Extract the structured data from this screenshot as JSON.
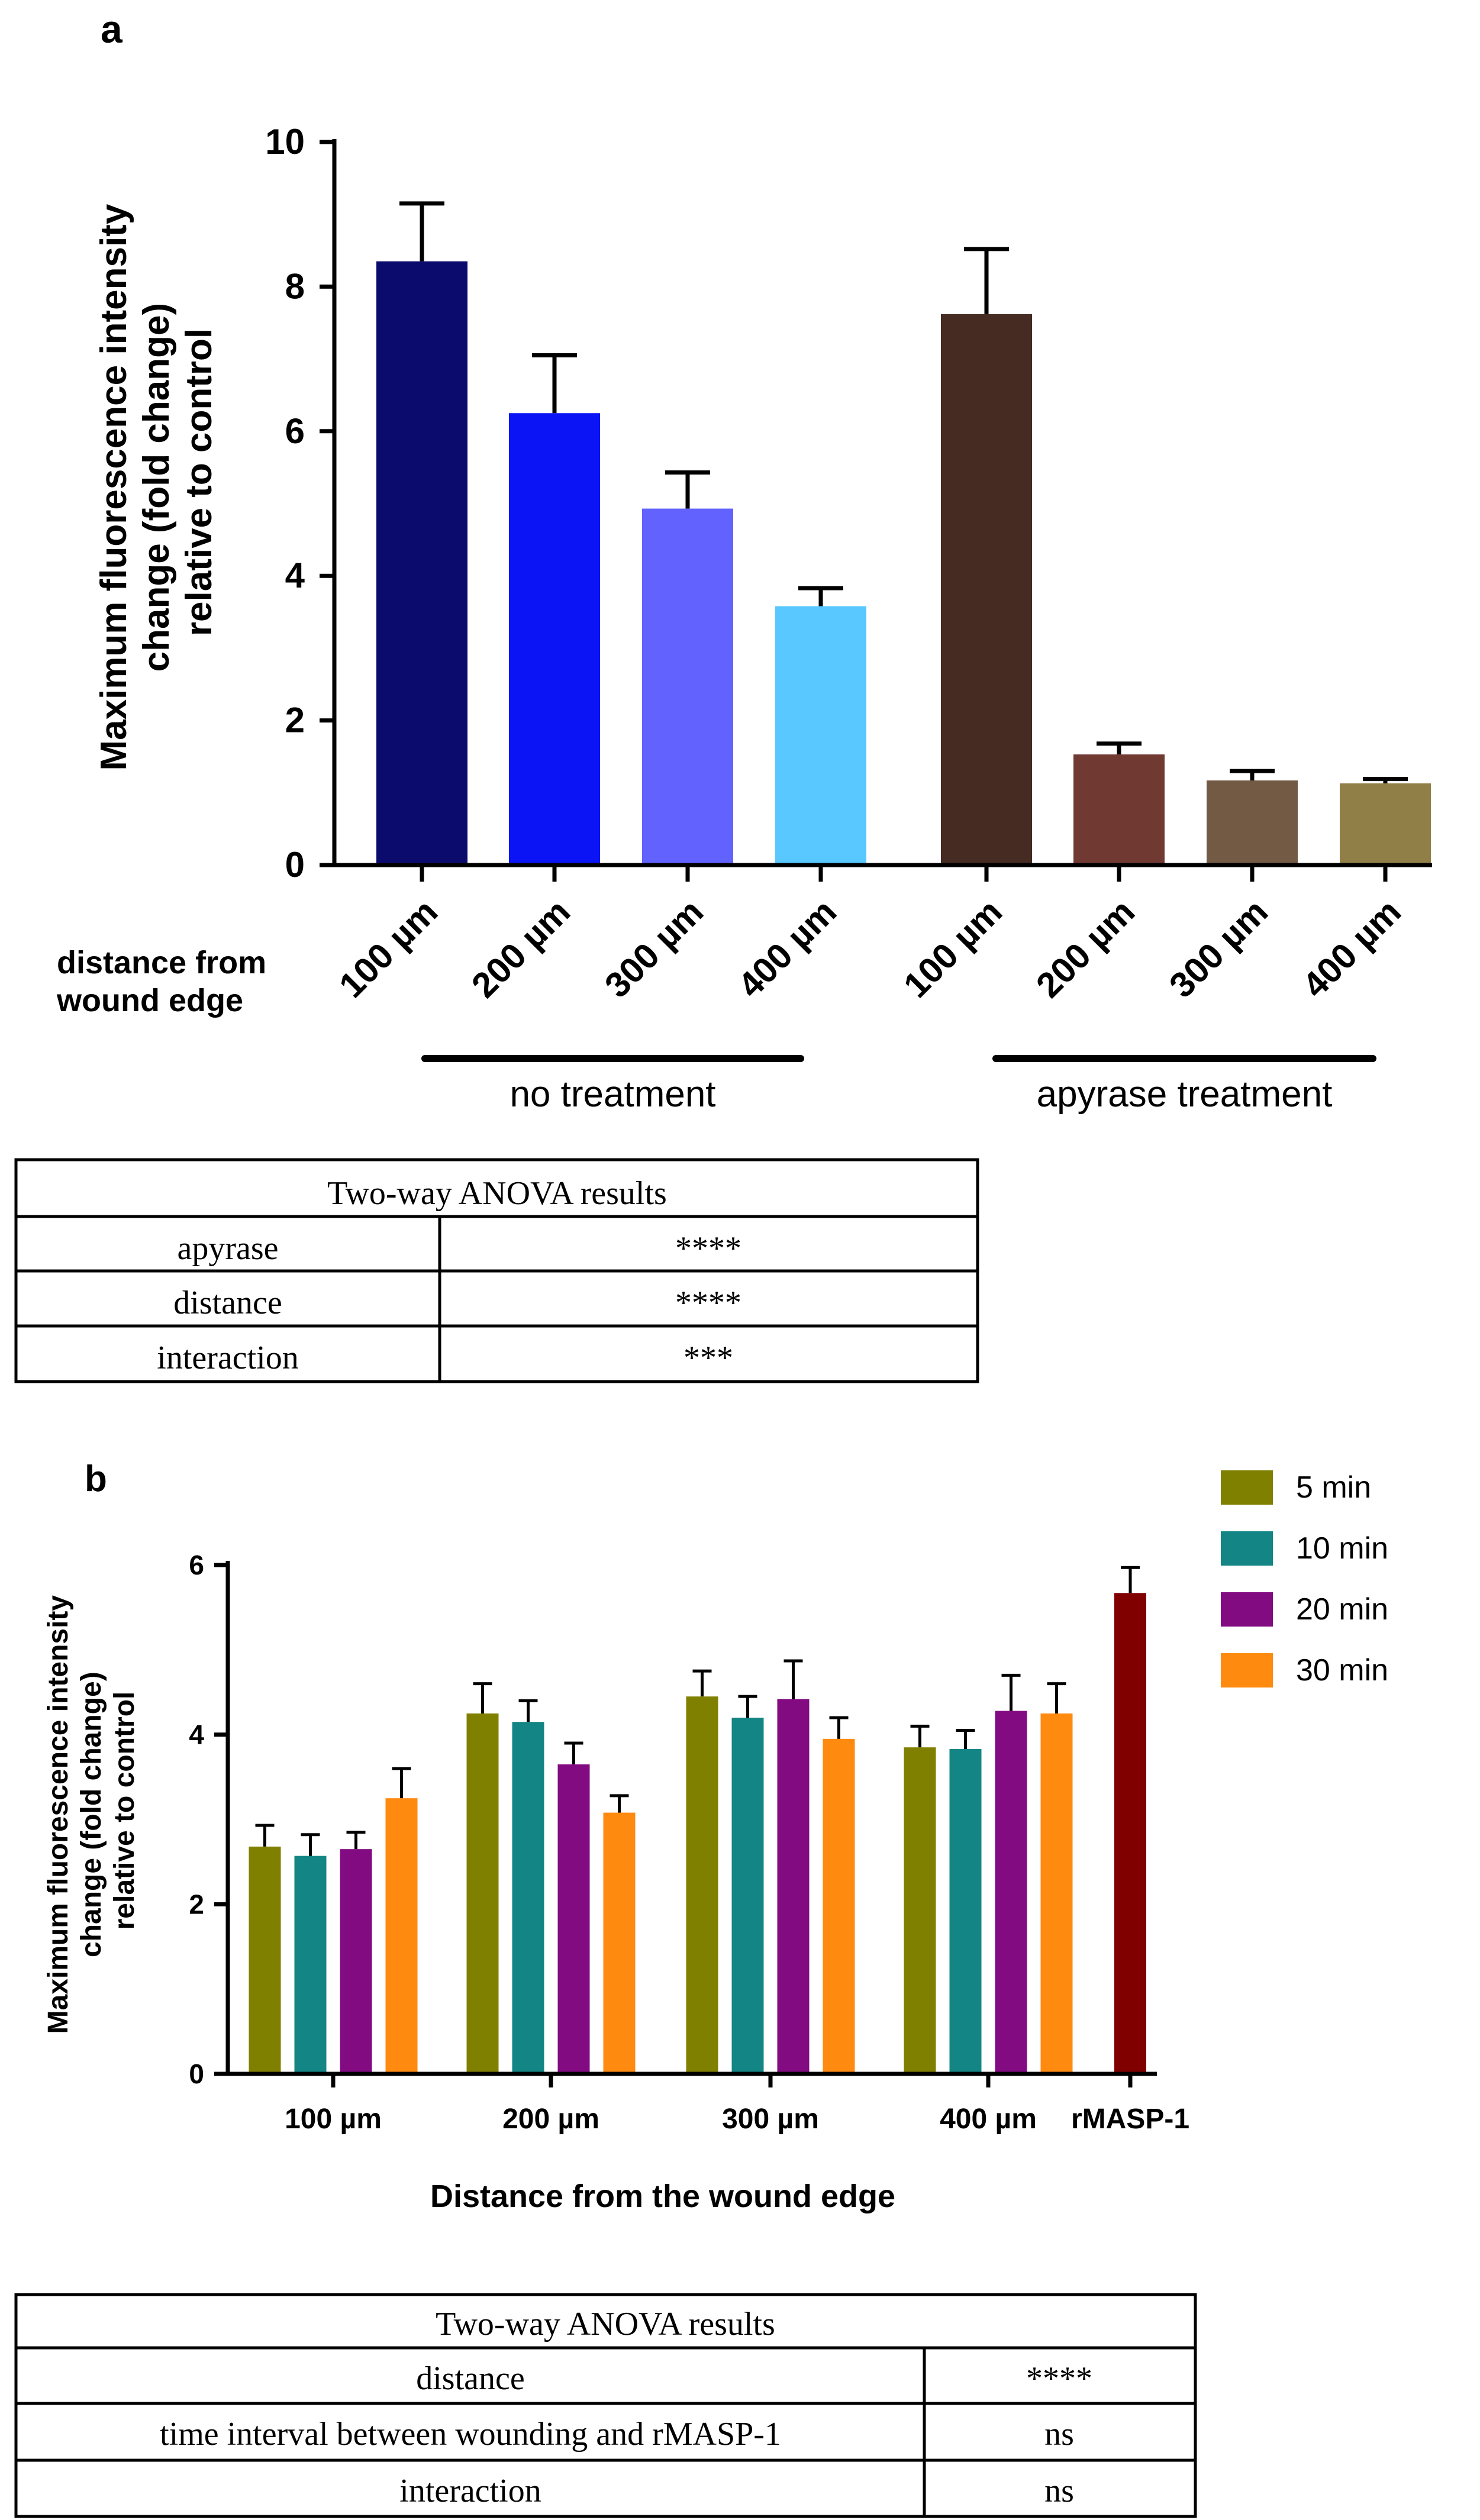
{
  "chart_data": [
    {
      "panel": "a",
      "type": "bar",
      "ylabel_lines": [
        "Maximum fluorescence intensity",
        "change (fold change)",
        "relative to control"
      ],
      "ylim": [
        0,
        10
      ],
      "yticks": [
        "0",
        "2",
        "4",
        "6",
        "8",
        "10"
      ],
      "x_row_label_lines": [
        "distance from",
        "wound edge"
      ],
      "categories": [
        "100 µm",
        "200 µm",
        "300 µm",
        "400 µm",
        "100 µm",
        "200 µm",
        "300 µm",
        "400 µm"
      ],
      "values": [
        8.35,
        6.25,
        4.93,
        3.58,
        7.62,
        1.53,
        1.17,
        1.13
      ],
      "errors": [
        0.8,
        0.8,
        0.5,
        0.25,
        0.9,
        0.15,
        0.13,
        0.06
      ],
      "colors": [
        "#0b0b6e",
        "#0a14f5",
        "#6262ff",
        "#58c8ff",
        "#452b22",
        "#703a33",
        "#725a45",
        "#907f47"
      ],
      "groups": [
        {
          "label": "no treatment",
          "bars": [
            0,
            1,
            2,
            3
          ]
        },
        {
          "label": "apyrase treatment",
          "bars": [
            4,
            5,
            6,
            7
          ]
        }
      ],
      "anova": {
        "title": "Two-way ANOVA results",
        "rows": [
          {
            "factor": "apyrase",
            "result": "****"
          },
          {
            "factor": "distance",
            "result": "****"
          },
          {
            "factor": "interaction",
            "result": "***"
          }
        ]
      }
    },
    {
      "panel": "b",
      "type": "bar",
      "ylabel_lines": [
        "Maximum fluorescence intensity",
        "change (fold change)",
        "relative to control"
      ],
      "xlabel": "Distance from the wound edge",
      "ylim": [
        0,
        6
      ],
      "yticks": [
        "0",
        "2",
        "4",
        "6"
      ],
      "categories": [
        "100 µm",
        "200 µm",
        "300 µm",
        "400 µm"
      ],
      "series": [
        {
          "name": "5 min",
          "color": "#808000",
          "values": [
            2.68,
            4.25,
            4.45,
            3.85
          ],
          "errors": [
            0.25,
            0.35,
            0.3,
            0.25
          ]
        },
        {
          "name": "10 min",
          "color": "#138585",
          "values": [
            2.57,
            4.15,
            4.2,
            3.83
          ],
          "errors": [
            0.25,
            0.25,
            0.25,
            0.22
          ]
        },
        {
          "name": "20 min",
          "color": "#820b82",
          "values": [
            2.65,
            3.65,
            4.42,
            4.28
          ],
          "errors": [
            0.2,
            0.25,
            0.45,
            0.42
          ]
        },
        {
          "name": "30 min",
          "color": "#ff8a10",
          "values": [
            3.25,
            3.08,
            3.95,
            4.25
          ],
          "errors": [
            0.35,
            0.2,
            0.25,
            0.35
          ]
        }
      ],
      "reference": {
        "label": "rMASP-1",
        "value": 5.67,
        "error": 0.3,
        "color": "#800000"
      },
      "anova": {
        "title": "Two-way ANOVA results",
        "rows": [
          {
            "factor": "distance",
            "result": "****"
          },
          {
            "factor": "time interval between wounding and rMASP-1",
            "result": "ns"
          },
          {
            "factor": "interaction",
            "result": "ns"
          }
        ]
      }
    }
  ]
}
